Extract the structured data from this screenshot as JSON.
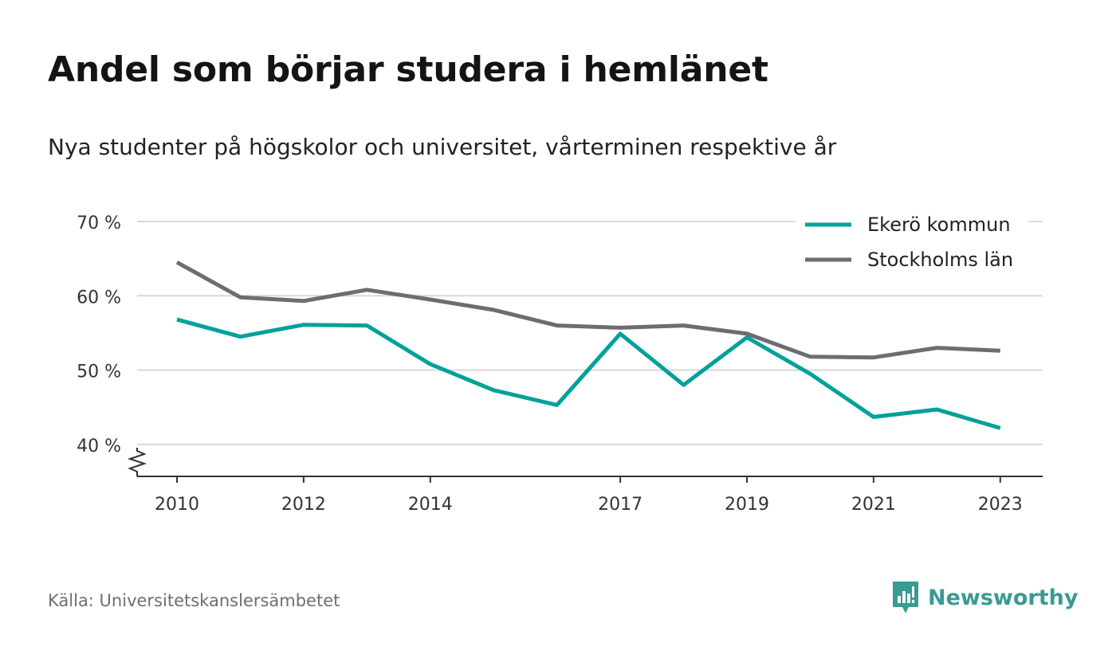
{
  "header": {
    "title": "Andel som börjar studera i hemlänet",
    "subtitle": "Nya studenter på högskolor och universitet, vårterminen respektive år"
  },
  "footer": {
    "source": "Källa: Universitetskanslersämbetet",
    "brand": "Newsworthy"
  },
  "colors": {
    "ekero": "#00a19a",
    "stockholm": "#6e6c73",
    "grid": "#d9d9d9",
    "axis": "#333333",
    "brand": "#3a9a94"
  },
  "chart_data": {
    "type": "line",
    "x": [
      2010,
      2011,
      2012,
      2013,
      2014,
      2015,
      2016,
      2017,
      2018,
      2019,
      2020,
      2021,
      2022,
      2023
    ],
    "x_tick_values": [
      2010,
      2012,
      2014,
      2017,
      2019,
      2021,
      2023
    ],
    "x_tick_labels": [
      "2010",
      "2012",
      "2014",
      "2017",
      "2019",
      "2021",
      "2023"
    ],
    "y_ticks": [
      40,
      50,
      60,
      70
    ],
    "y_tick_labels": [
      "40 %",
      "50 %",
      "60 %",
      "70 %"
    ],
    "ylim": [
      35.7,
      70
    ],
    "y_axis_break": true,
    "grid": true,
    "legend_position": "top-right",
    "series": [
      {
        "name": "Ekerö kommun",
        "color": "#00a19a",
        "values": [
          56.8,
          54.5,
          56.1,
          56.0,
          50.8,
          47.3,
          45.3,
          54.9,
          48.0,
          54.4,
          49.5,
          43.7,
          44.7,
          42.2
        ]
      },
      {
        "name": "Stockholms län",
        "color": "#6e6c73",
        "values": [
          64.5,
          59.8,
          59.3,
          60.8,
          59.5,
          58.1,
          56.0,
          55.7,
          56.0,
          54.9,
          51.8,
          51.7,
          53.0,
          52.6
        ]
      }
    ]
  }
}
